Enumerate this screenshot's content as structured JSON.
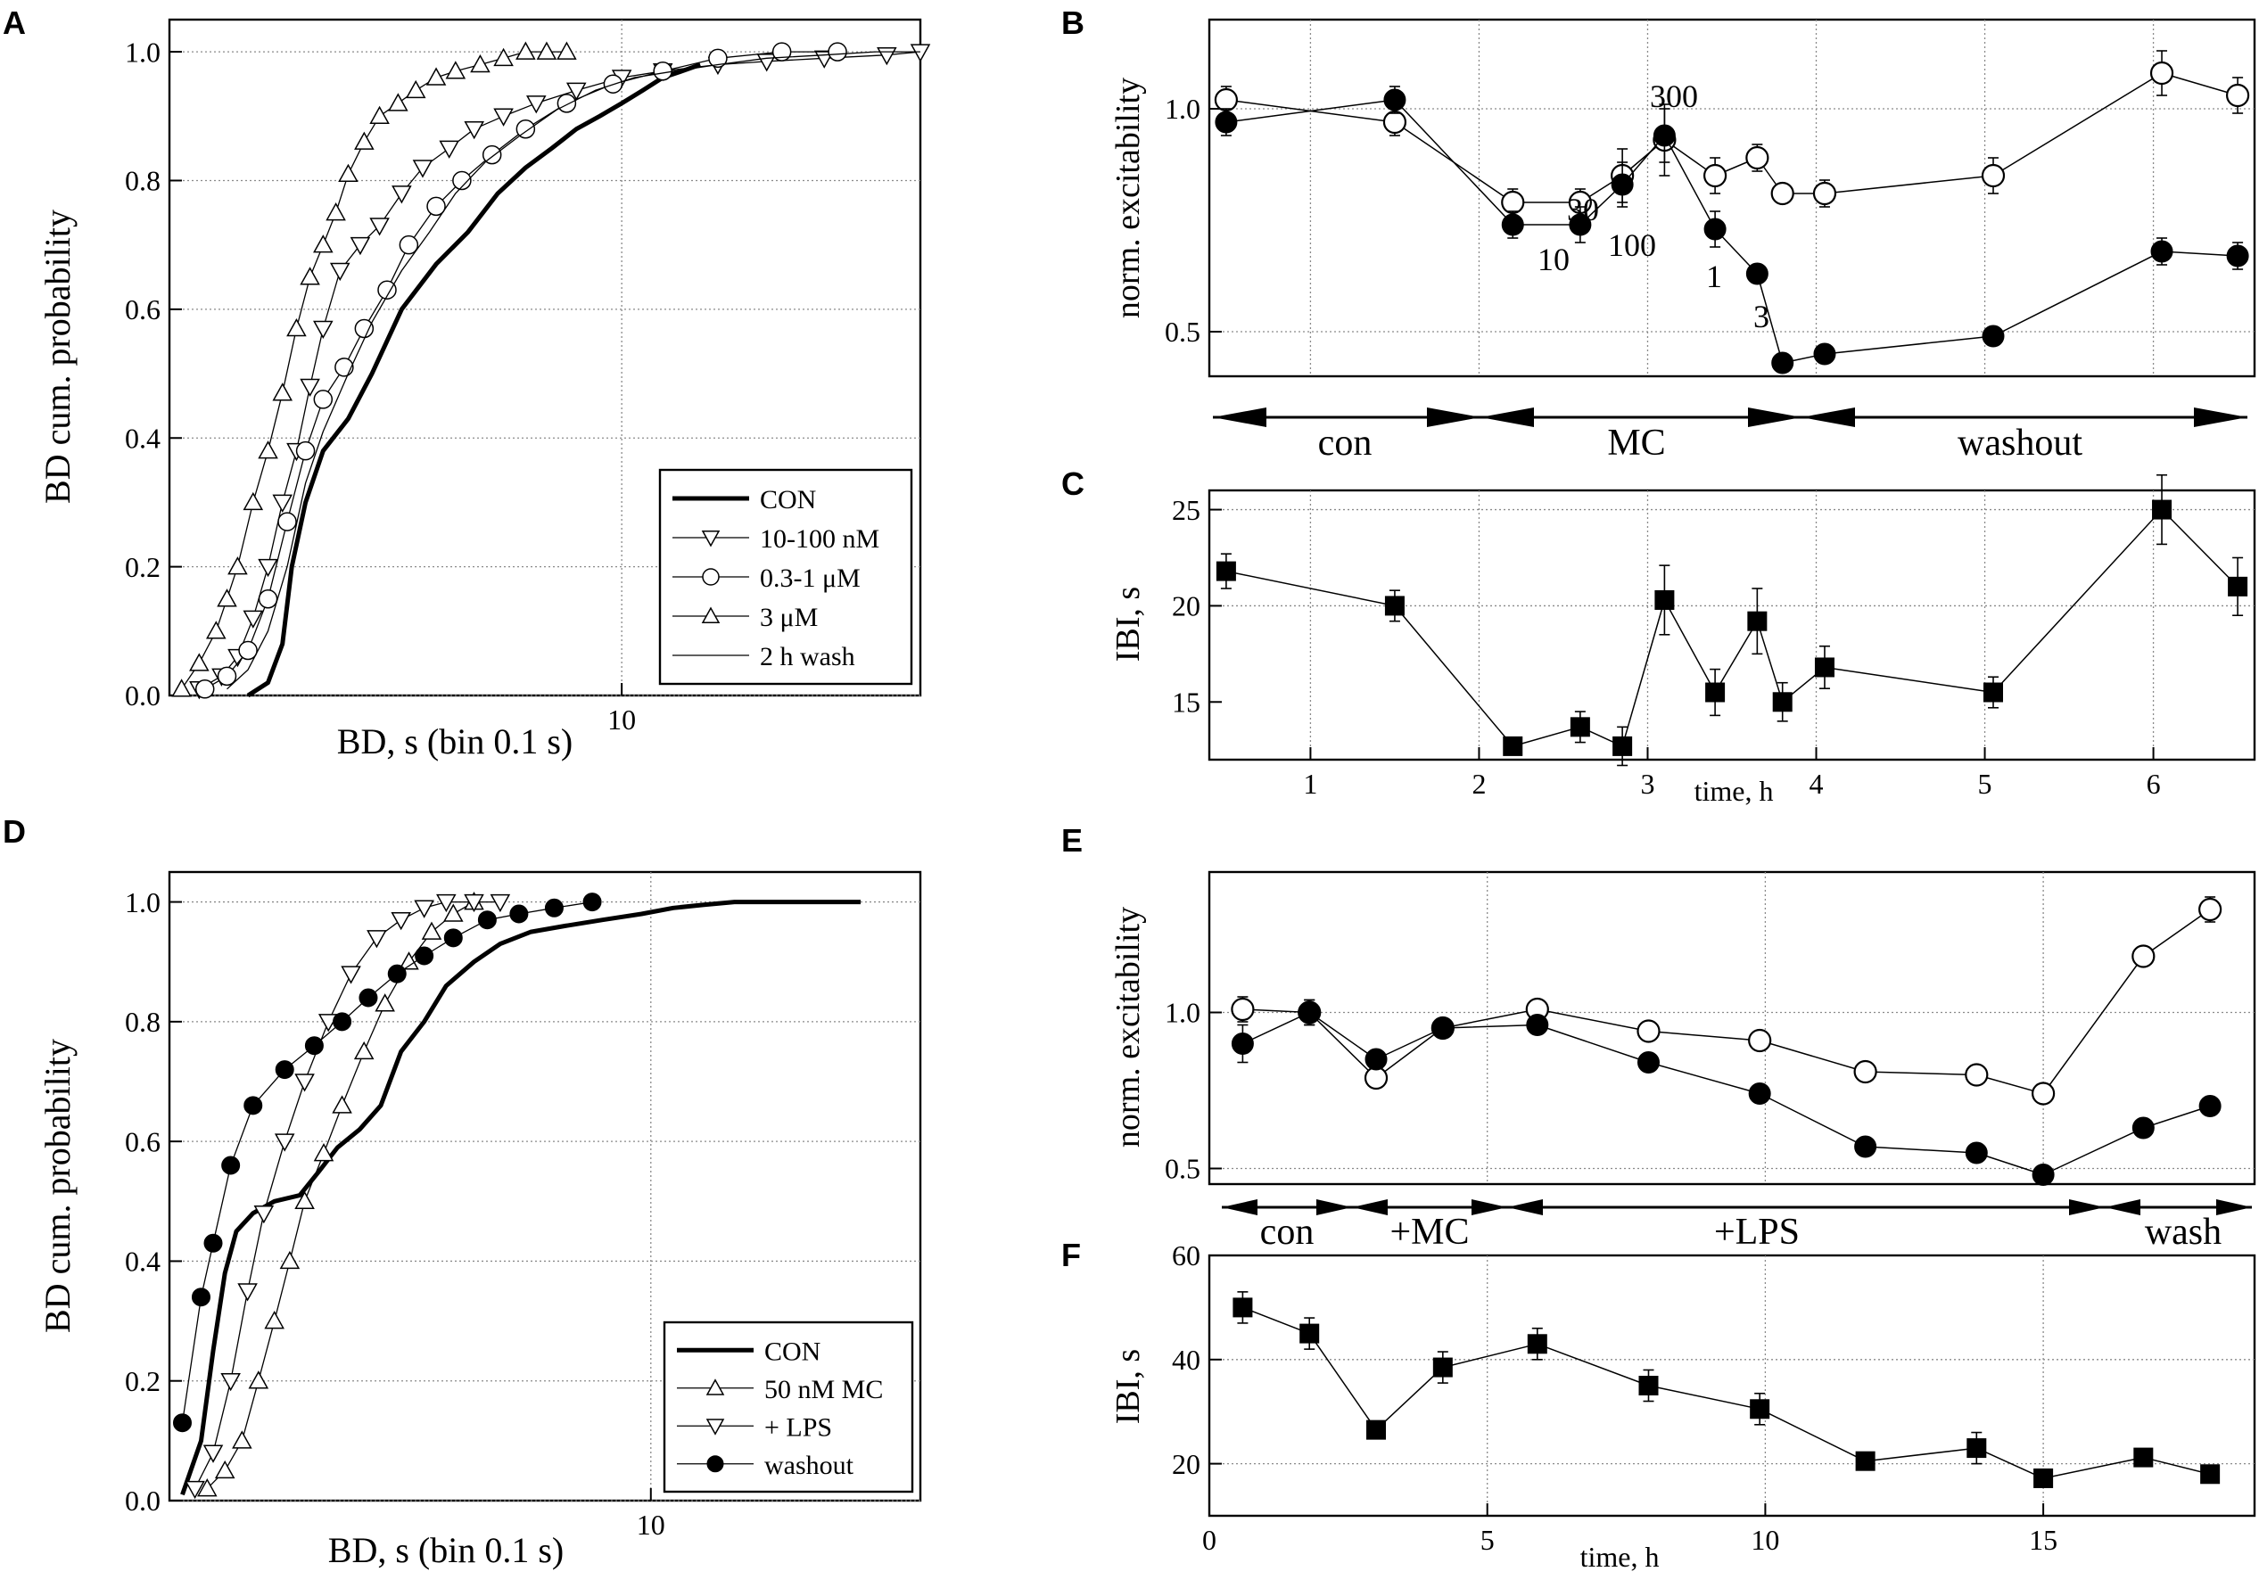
{
  "chart_data": [
    {
      "id": "A",
      "type": "line",
      "letter": "A",
      "xlabel": "BD, s (bin 0.1 s)",
      "ylabel": "BD cum. probability",
      "xscale": "log",
      "xlim": [
        3.5,
        20
      ],
      "ylim": [
        0,
        1.05
      ],
      "xticks": [
        10
      ],
      "yticks": [
        0,
        0.2,
        0.4,
        0.6,
        0.8,
        1.0
      ],
      "ytick_labels": [
        "0.0",
        "0.2",
        "0.4",
        "0.6",
        "0.8",
        "1.0"
      ],
      "legend_position": "bottom-right",
      "series": [
        {
          "name": "CON",
          "marker": "none",
          "width": 5,
          "x": [
            4.2,
            4.4,
            4.55,
            4.65,
            4.8,
            5.0,
            5.3,
            5.6,
            6.0,
            6.5,
            7.0,
            7.5,
            8.0,
            8.5,
            9.0,
            9.5,
            10.0,
            10.5,
            11.0,
            11.5,
            12.0
          ],
          "y": [
            0.0,
            0.02,
            0.08,
            0.2,
            0.3,
            0.38,
            0.43,
            0.5,
            0.6,
            0.67,
            0.72,
            0.78,
            0.82,
            0.85,
            0.88,
            0.9,
            0.92,
            0.94,
            0.96,
            0.97,
            0.98
          ]
        },
        {
          "name": "10-100 nM",
          "marker": "tri-down",
          "width": 1.3,
          "x": [
            3.75,
            3.95,
            4.1,
            4.25,
            4.4,
            4.55,
            4.7,
            4.85,
            5.0,
            5.2,
            5.45,
            5.7,
            6.0,
            6.3,
            6.7,
            7.1,
            7.6,
            8.2,
            9.0,
            10.0,
            11.0,
            12.5,
            14.0,
            16.0,
            18.5,
            20.0
          ],
          "y": [
            0.01,
            0.03,
            0.06,
            0.12,
            0.2,
            0.3,
            0.38,
            0.48,
            0.57,
            0.66,
            0.7,
            0.73,
            0.78,
            0.82,
            0.85,
            0.88,
            0.9,
            0.92,
            0.94,
            0.96,
            0.97,
            0.98,
            0.985,
            0.99,
            0.995,
            1.0
          ]
        },
        {
          "name": "0.3-1 μM",
          "marker": "circle",
          "width": 1.3,
          "x": [
            3.8,
            4.0,
            4.2,
            4.4,
            4.6,
            4.8,
            5.0,
            5.25,
            5.5,
            5.8,
            6.1,
            6.5,
            6.9,
            7.4,
            8.0,
            8.8,
            9.8,
            11.0,
            12.5,
            14.5,
            16.5
          ],
          "y": [
            0.01,
            0.03,
            0.07,
            0.15,
            0.27,
            0.38,
            0.46,
            0.51,
            0.57,
            0.63,
            0.7,
            0.76,
            0.8,
            0.84,
            0.88,
            0.92,
            0.95,
            0.97,
            0.99,
            1.0,
            1.0
          ]
        },
        {
          "name": "3 μM",
          "marker": "tri-up",
          "width": 1.3,
          "x": [
            3.6,
            3.75,
            3.9,
            4.0,
            4.1,
            4.25,
            4.4,
            4.55,
            4.7,
            4.85,
            5.0,
            5.15,
            5.3,
            5.5,
            5.7,
            5.95,
            6.2,
            6.5,
            6.8,
            7.2,
            7.6,
            8.0,
            8.4,
            8.8
          ],
          "y": [
            0.01,
            0.05,
            0.1,
            0.15,
            0.2,
            0.3,
            0.38,
            0.47,
            0.57,
            0.65,
            0.7,
            0.75,
            0.81,
            0.86,
            0.9,
            0.92,
            0.94,
            0.96,
            0.97,
            0.98,
            0.99,
            1.0,
            1.0,
            1.0
          ]
        },
        {
          "name": "2 h wash",
          "marker": "none",
          "width": 1.3,
          "x": [
            4.0,
            4.2,
            4.4,
            4.6,
            4.8,
            5.0,
            5.3,
            5.6,
            6.0,
            6.4,
            6.8,
            7.3,
            7.9,
            8.6,
            9.4,
            10.3,
            11.3,
            12.5,
            14.0,
            16.0,
            18.0,
            20.0
          ],
          "y": [
            0.01,
            0.04,
            0.1,
            0.2,
            0.33,
            0.41,
            0.5,
            0.58,
            0.66,
            0.72,
            0.78,
            0.83,
            0.87,
            0.91,
            0.94,
            0.96,
            0.97,
            0.98,
            0.99,
            0.995,
            1.0,
            1.0
          ]
        }
      ]
    },
    {
      "id": "B",
      "type": "line",
      "letter": "B",
      "xlabel": "",
      "ylabel": "norm. excitability",
      "xlim": [
        0.4,
        6.6
      ],
      "ylim": [
        0.4,
        1.2
      ],
      "yticks": [
        0.5,
        1.0
      ],
      "ytick_labels": [
        "0.5",
        "1.0"
      ],
      "xgrid": [
        1,
        2,
        3,
        4,
        5,
        6
      ],
      "ygrid": [
        0.5,
        1.0
      ],
      "annotations": [
        "10",
        "30",
        "100",
        "300",
        "1",
        "3"
      ],
      "series": [
        {
          "name": "open",
          "marker": "circle-open",
          "x": [
            0.5,
            1.5,
            2.2,
            2.6,
            2.85,
            3.1,
            3.4,
            3.65,
            3.8,
            4.05,
            5.05,
            6.05,
            6.5
          ],
          "y": [
            1.02,
            0.97,
            0.79,
            0.79,
            0.85,
            0.93,
            0.85,
            0.89,
            0.81,
            0.81,
            0.85,
            1.08,
            1.03
          ],
          "err": [
            0.03,
            0.03,
            0.03,
            0.03,
            0.06,
            0.08,
            0.04,
            0.03,
            0.02,
            0.03,
            0.04,
            0.05,
            0.04
          ]
        },
        {
          "name": "filled",
          "marker": "circle-filled",
          "x": [
            0.5,
            1.5,
            2.2,
            2.6,
            2.85,
            3.1,
            3.4,
            3.65,
            3.8,
            4.05,
            5.05,
            6.05,
            6.5
          ],
          "y": [
            0.97,
            1.02,
            0.74,
            0.74,
            0.83,
            0.94,
            0.73,
            0.63,
            0.43,
            0.45,
            0.49,
            0.68,
            0.67
          ],
          "err": [
            0.03,
            0.03,
            0.03,
            0.04,
            0.05,
            0.06,
            0.04,
            0.02,
            0.01,
            0.01,
            0.01,
            0.03,
            0.03
          ]
        }
      ]
    },
    {
      "id": "C",
      "type": "line",
      "letter": "C",
      "xlabel": "time, h",
      "ylabel": "IBI, s",
      "xlim": [
        0.4,
        6.6
      ],
      "ylim": [
        12,
        26
      ],
      "xticks": [
        1,
        2,
        3,
        4,
        5,
        6
      ],
      "xtick_labels": [
        "1",
        "2",
        "3",
        "4",
        "5",
        "6"
      ],
      "yticks": [
        15,
        20,
        25
      ],
      "ytick_labels": [
        "15",
        "20",
        "25"
      ],
      "xgrid": [
        1,
        2,
        3,
        4,
        5,
        6
      ],
      "ygrid": [
        20,
        25
      ],
      "series": [
        {
          "name": "IBI",
          "marker": "square-filled",
          "x": [
            0.5,
            1.5,
            2.2,
            2.6,
            2.85,
            3.1,
            3.4,
            3.65,
            3.8,
            4.05,
            5.05,
            6.05,
            6.5
          ],
          "y": [
            21.8,
            20.0,
            12.7,
            13.7,
            12.7,
            20.3,
            15.5,
            19.2,
            15.0,
            16.8,
            15.5,
            25.0,
            21.0
          ],
          "err": [
            0.9,
            0.8,
            0.4,
            0.8,
            1.0,
            1.8,
            1.2,
            1.7,
            1.0,
            1.1,
            0.8,
            1.8,
            1.5
          ]
        }
      ]
    },
    {
      "id": "D",
      "type": "line",
      "letter": "D",
      "xlabel": "BD, s (bin 0.1 s)",
      "ylabel": "BD cum. probability",
      "xscale": "log",
      "xlim": [
        3.5,
        18
      ],
      "ylim": [
        0,
        1.05
      ],
      "xticks": [
        10
      ],
      "yticks": [
        0,
        0.2,
        0.4,
        0.6,
        0.8,
        1.0
      ],
      "ytick_labels": [
        "0.0",
        "0.2",
        "0.4",
        "0.6",
        "0.8",
        "1.0"
      ],
      "legend_position": "bottom-right",
      "series": [
        {
          "name": "CON",
          "marker": "none",
          "width": 5,
          "x": [
            3.6,
            3.75,
            3.85,
            3.95,
            4.05,
            4.2,
            4.4,
            4.65,
            4.85,
            5.05,
            5.3,
            5.55,
            5.8,
            6.1,
            6.4,
            6.8,
            7.2,
            7.7,
            8.3,
            9.0,
            9.8,
            10.5,
            11.2,
            12.0,
            13.0,
            14.0,
            15.0,
            15.5,
            15.8
          ],
          "y": [
            0.01,
            0.1,
            0.25,
            0.38,
            0.45,
            0.48,
            0.5,
            0.51,
            0.55,
            0.59,
            0.62,
            0.66,
            0.75,
            0.8,
            0.86,
            0.9,
            0.93,
            0.95,
            0.96,
            0.97,
            0.98,
            0.99,
            0.995,
            1.0,
            1.0,
            1.0,
            1.0,
            1.0,
            1.0
          ]
        },
        {
          "name": "50 nM MC",
          "marker": "tri-up",
          "width": 1.3,
          "x": [
            3.8,
            3.95,
            4.1,
            4.25,
            4.4,
            4.55,
            4.7,
            4.9,
            5.1,
            5.35,
            5.6,
            5.9,
            6.2,
            6.5,
            6.8
          ],
          "y": [
            0.02,
            0.05,
            0.1,
            0.2,
            0.3,
            0.4,
            0.5,
            0.58,
            0.66,
            0.75,
            0.83,
            0.9,
            0.95,
            0.98,
            1.0
          ]
        },
        {
          "name": "+ LPS",
          "marker": "tri-down",
          "width": 1.3,
          "x": [
            3.7,
            3.85,
            4.0,
            4.15,
            4.3,
            4.5,
            4.7,
            4.95,
            5.2,
            5.5,
            5.8,
            6.1,
            6.4,
            6.8,
            7.2
          ],
          "y": [
            0.02,
            0.08,
            0.2,
            0.35,
            0.48,
            0.6,
            0.7,
            0.8,
            0.88,
            0.94,
            0.97,
            0.99,
            1.0,
            1.0,
            1.0
          ]
        },
        {
          "name": "washout",
          "marker": "circle-filled",
          "width": 1.3,
          "x": [
            3.6,
            3.75,
            3.85,
            4.0,
            4.2,
            4.5,
            4.8,
            5.1,
            5.4,
            5.75,
            6.1,
            6.5,
            7.0,
            7.5,
            8.1,
            8.8
          ],
          "y": [
            0.13,
            0.34,
            0.43,
            0.56,
            0.66,
            0.72,
            0.76,
            0.8,
            0.84,
            0.88,
            0.91,
            0.94,
            0.97,
            0.98,
            0.99,
            1.0
          ]
        }
      ]
    },
    {
      "id": "E",
      "type": "line",
      "letter": "E",
      "xlabel": "",
      "ylabel": "norm. excitability",
      "xlim": [
        0,
        18.8
      ],
      "ylim": [
        0.45,
        1.45
      ],
      "yticks": [
        0.5,
        1.0
      ],
      "ytick_labels": [
        "0.5",
        "1.0"
      ],
      "xgrid": [
        5,
        10,
        15
      ],
      "ygrid": [
        0.5,
        1.0
      ],
      "series": [
        {
          "name": "open",
          "marker": "circle-open",
          "x": [
            0.6,
            1.8,
            3.0,
            4.2,
            5.9,
            7.9,
            9.9,
            11.8,
            13.8,
            15.0,
            16.8,
            18.0
          ],
          "y": [
            1.01,
            1.0,
            0.79,
            0.95,
            1.01,
            0.94,
            0.91,
            0.81,
            0.8,
            0.74,
            1.18,
            1.33
          ],
          "err": [
            0.04,
            0.04,
            0.03,
            0.02,
            0.03,
            0.03,
            0.03,
            0.02,
            0.02,
            0.02,
            0.03,
            0.04
          ]
        },
        {
          "name": "filled",
          "marker": "circle-filled",
          "x": [
            0.6,
            1.8,
            3.0,
            4.2,
            5.9,
            7.9,
            9.9,
            11.8,
            13.8,
            15.0,
            16.8,
            18.0
          ],
          "y": [
            0.9,
            1.0,
            0.85,
            0.95,
            0.96,
            0.84,
            0.74,
            0.57,
            0.55,
            0.48,
            0.63,
            0.7
          ],
          "err": [
            0.06,
            0.04,
            0.02,
            0.02,
            0.02,
            0.02,
            0.02,
            0.02,
            0.02,
            0.02,
            0.02,
            0.02
          ]
        }
      ]
    },
    {
      "id": "F",
      "type": "line",
      "letter": "F",
      "xlabel": "time, h",
      "ylabel": "IBI, s",
      "xlim": [
        0,
        18.8
      ],
      "ylim": [
        10,
        60
      ],
      "xticks": [
        0,
        5,
        10,
        15
      ],
      "xtick_labels": [
        "0",
        "5",
        "10",
        "15"
      ],
      "yticks": [
        20,
        40,
        60
      ],
      "ytick_labels": [
        "20",
        "40",
        "60"
      ],
      "xgrid": [
        5,
        10,
        15
      ],
      "ygrid": [
        20,
        40
      ],
      "series": [
        {
          "name": "IBI",
          "marker": "square-filled",
          "x": [
            0.6,
            1.8,
            3.0,
            4.2,
            5.9,
            7.9,
            9.9,
            11.8,
            13.8,
            15.0,
            16.8,
            18.0
          ],
          "y": [
            50,
            45,
            26.5,
            38.5,
            43,
            35,
            30.5,
            20.5,
            23,
            17.2,
            21.2,
            18
          ],
          "err": [
            3,
            3,
            1,
            3,
            3,
            3,
            3,
            1,
            3,
            1,
            1,
            1
          ]
        }
      ]
    }
  ],
  "legend_a": [
    "CON",
    "10-100 nM",
    "0.3-1 μM",
    "3 μM",
    "2 h wash"
  ],
  "legend_d": [
    "CON",
    "50 nM MC",
    "+ LPS",
    "washout"
  ],
  "phases_b": [
    "con",
    "MC",
    "washout"
  ],
  "phases_e": [
    "con",
    "+MC",
    "+LPS",
    "wash"
  ]
}
